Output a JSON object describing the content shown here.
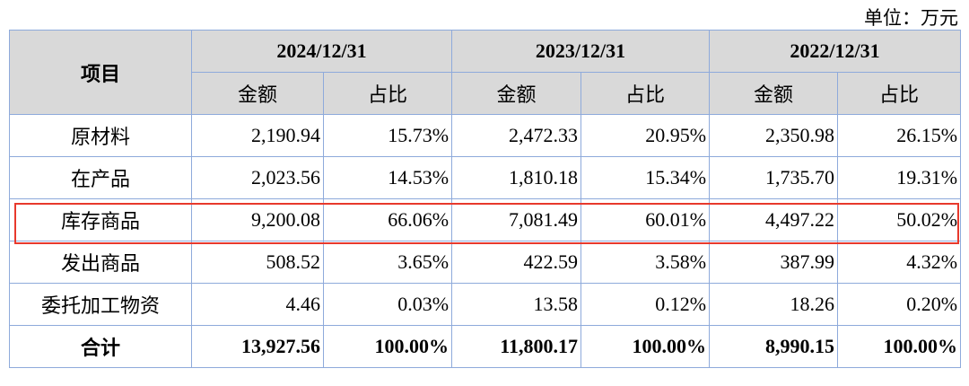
{
  "unit_label": "单位：万元",
  "header": {
    "item": "项目",
    "periods": [
      "2024/12/31",
      "2023/12/31",
      "2022/12/31"
    ],
    "amount": "金额",
    "ratio": "占比"
  },
  "rows": [
    {
      "name": "原材料",
      "values": [
        "2,190.94",
        "15.73%",
        "2,472.33",
        "20.95%",
        "2,350.98",
        "26.15%"
      ]
    },
    {
      "name": "在产品",
      "values": [
        "2,023.56",
        "14.53%",
        "1,810.18",
        "15.34%",
        "1,735.70",
        "19.31%"
      ]
    },
    {
      "name": "库存商品",
      "values": [
        "9,200.08",
        "66.06%",
        "7,081.49",
        "60.01%",
        "4,497.22",
        "50.02%"
      ],
      "highlighted": true
    },
    {
      "name": "发出商品",
      "values": [
        "508.52",
        "3.65%",
        "422.59",
        "3.58%",
        "387.99",
        "4.32%"
      ]
    },
    {
      "name": "委托加工物资",
      "values": [
        "4.46",
        "0.03%",
        "13.58",
        "0.12%",
        "18.26",
        "0.20%"
      ]
    },
    {
      "name": "合计",
      "values": [
        "13,927.56",
        "100.00%",
        "11,800.17",
        "100.00%",
        "8,990.15",
        "100.00%"
      ],
      "total": true
    }
  ],
  "colors": {
    "header_bg": "#d9d9d9",
    "border": "#8eaadb",
    "highlight": "#e8392c"
  }
}
